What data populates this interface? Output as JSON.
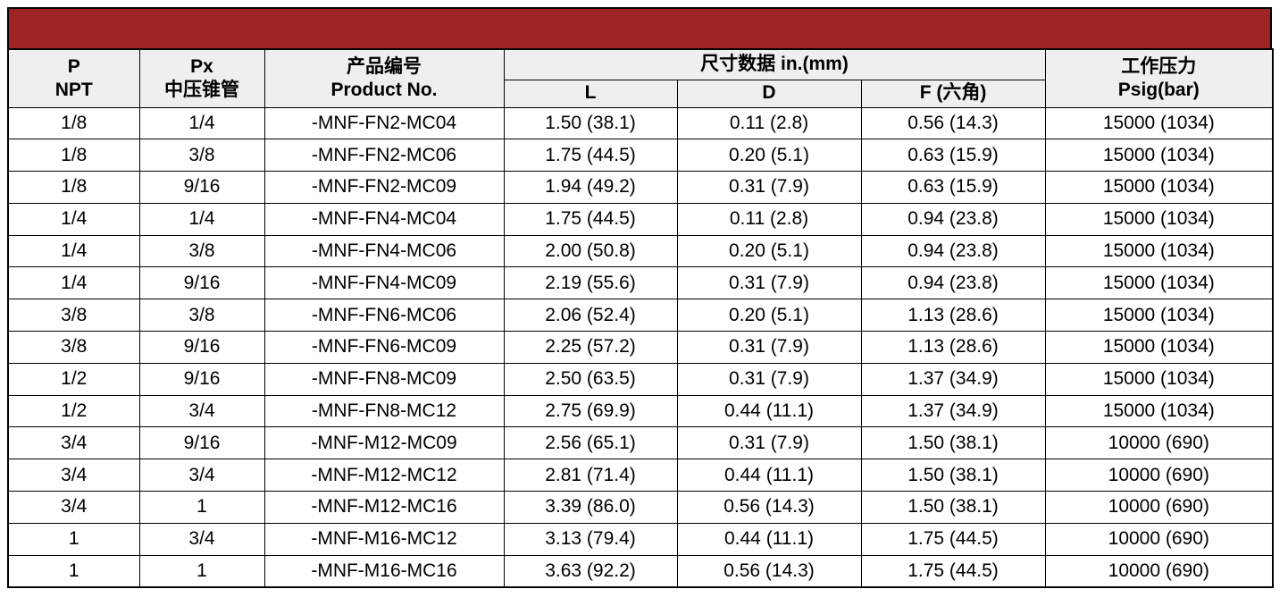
{
  "banner": {
    "text": "",
    "color": "#9e2423"
  },
  "colors": {
    "accent": "#9e2423",
    "header_bg": "#efefef",
    "border": "#000000",
    "text": "#000000",
    "page_bg": "#ffffff"
  },
  "table": {
    "header": {
      "p": {
        "line1": "P",
        "line2": "NPT"
      },
      "px": {
        "line1": "Px",
        "line2": "中压锥管"
      },
      "product": {
        "line1": "产品编号",
        "line2": "Product No."
      },
      "dimensions_group": "尺寸数据  in.(mm)",
      "dimension_cols": [
        "L",
        "D",
        "F (六角)"
      ],
      "pressure": {
        "line1": "工作压力",
        "line2": "Psig(bar)"
      }
    },
    "rows": [
      [
        "1/8",
        "1/4",
        "-MNF-FN2-MC04",
        "1.50 (38.1)",
        "0.11 (2.8)",
        "0.56 (14.3)",
        "15000 (1034)"
      ],
      [
        "1/8",
        "3/8",
        "-MNF-FN2-MC06",
        "1.75 (44.5)",
        "0.20 (5.1)",
        "0.63 (15.9)",
        "15000 (1034)"
      ],
      [
        "1/8",
        "9/16",
        "-MNF-FN2-MC09",
        "1.94 (49.2)",
        "0.31 (7.9)",
        "0.63 (15.9)",
        "15000 (1034)"
      ],
      [
        "1/4",
        "1/4",
        "-MNF-FN4-MC04",
        "1.75 (44.5)",
        "0.11 (2.8)",
        "0.94 (23.8)",
        "15000 (1034)"
      ],
      [
        "1/4",
        "3/8",
        "-MNF-FN4-MC06",
        "2.00 (50.8)",
        "0.20 (5.1)",
        "0.94 (23.8)",
        "15000 (1034)"
      ],
      [
        "1/4",
        "9/16",
        "-MNF-FN4-MC09",
        "2.19 (55.6)",
        "0.31 (7.9)",
        "0.94 (23.8)",
        "15000 (1034)"
      ],
      [
        "3/8",
        "3/8",
        "-MNF-FN6-MC06",
        "2.06 (52.4)",
        "0.20 (5.1)",
        "1.13 (28.6)",
        "15000 (1034)"
      ],
      [
        "3/8",
        "9/16",
        "-MNF-FN6-MC09",
        "2.25 (57.2)",
        "0.31 (7.9)",
        "1.13 (28.6)",
        "15000 (1034)"
      ],
      [
        "1/2",
        "9/16",
        "-MNF-FN8-MC09",
        "2.50 (63.5)",
        "0.31 (7.9)",
        "1.37 (34.9)",
        "15000 (1034)"
      ],
      [
        "1/2",
        "3/4",
        "-MNF-FN8-MC12",
        "2.75 (69.9)",
        "0.44 (11.1)",
        "1.37 (34.9)",
        "15000 (1034)"
      ],
      [
        "3/4",
        "9/16",
        "-MNF-M12-MC09",
        "2.56 (65.1)",
        "0.31 (7.9)",
        "1.50 (38.1)",
        "10000 (690)"
      ],
      [
        "3/4",
        "3/4",
        "-MNF-M12-MC12",
        "2.81 (71.4)",
        "0.44 (11.1)",
        "1.50 (38.1)",
        "10000 (690)"
      ],
      [
        "3/4",
        "1",
        "-MNF-M12-MC16",
        "3.39 (86.0)",
        "0.56 (14.3)",
        "1.50 (38.1)",
        "10000 (690)"
      ],
      [
        "1",
        "3/4",
        "-MNF-M16-MC12",
        "3.13 (79.4)",
        "0.44 (11.1)",
        "1.75 (44.5)",
        "10000 (690)"
      ],
      [
        "1",
        "1",
        "-MNF-M16-MC16",
        "3.63 (92.2)",
        "0.56 (14.3)",
        "1.75 (44.5)",
        "10000 (690)"
      ]
    ]
  }
}
